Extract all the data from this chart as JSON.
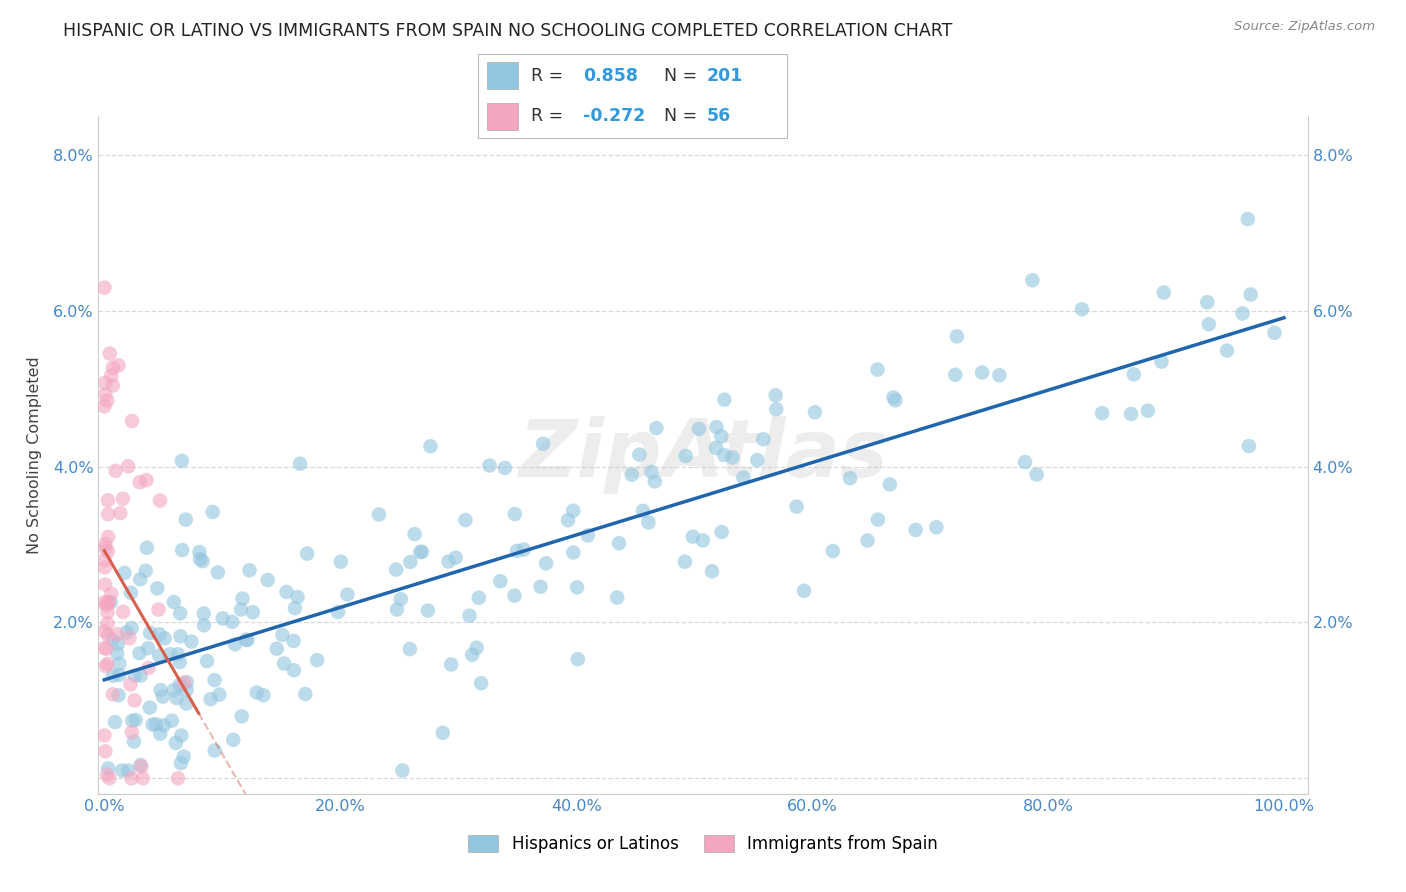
{
  "title": "HISPANIC OR LATINO VS IMMIGRANTS FROM SPAIN NO SCHOOLING COMPLETED CORRELATION CHART",
  "source": "Source: ZipAtlas.com",
  "ylabel_label": "No Schooling Completed",
  "blue_R": 0.858,
  "blue_N": 201,
  "pink_R": -0.272,
  "pink_N": 56,
  "blue_color": "#92c5de",
  "pink_color": "#f4a6c0",
  "blue_line_color": "#2166ac",
  "pink_line_color": "#d6604d",
  "background_color": "#ffffff",
  "grid_color": "#d0d0d0",
  "legend_label_blue": "Hispanics or Latinos",
  "legend_label_pink": "Immigrants from Spain",
  "xlim": [
    -0.005,
    1.02
  ],
  "ylim": [
    -0.002,
    0.085
  ]
}
